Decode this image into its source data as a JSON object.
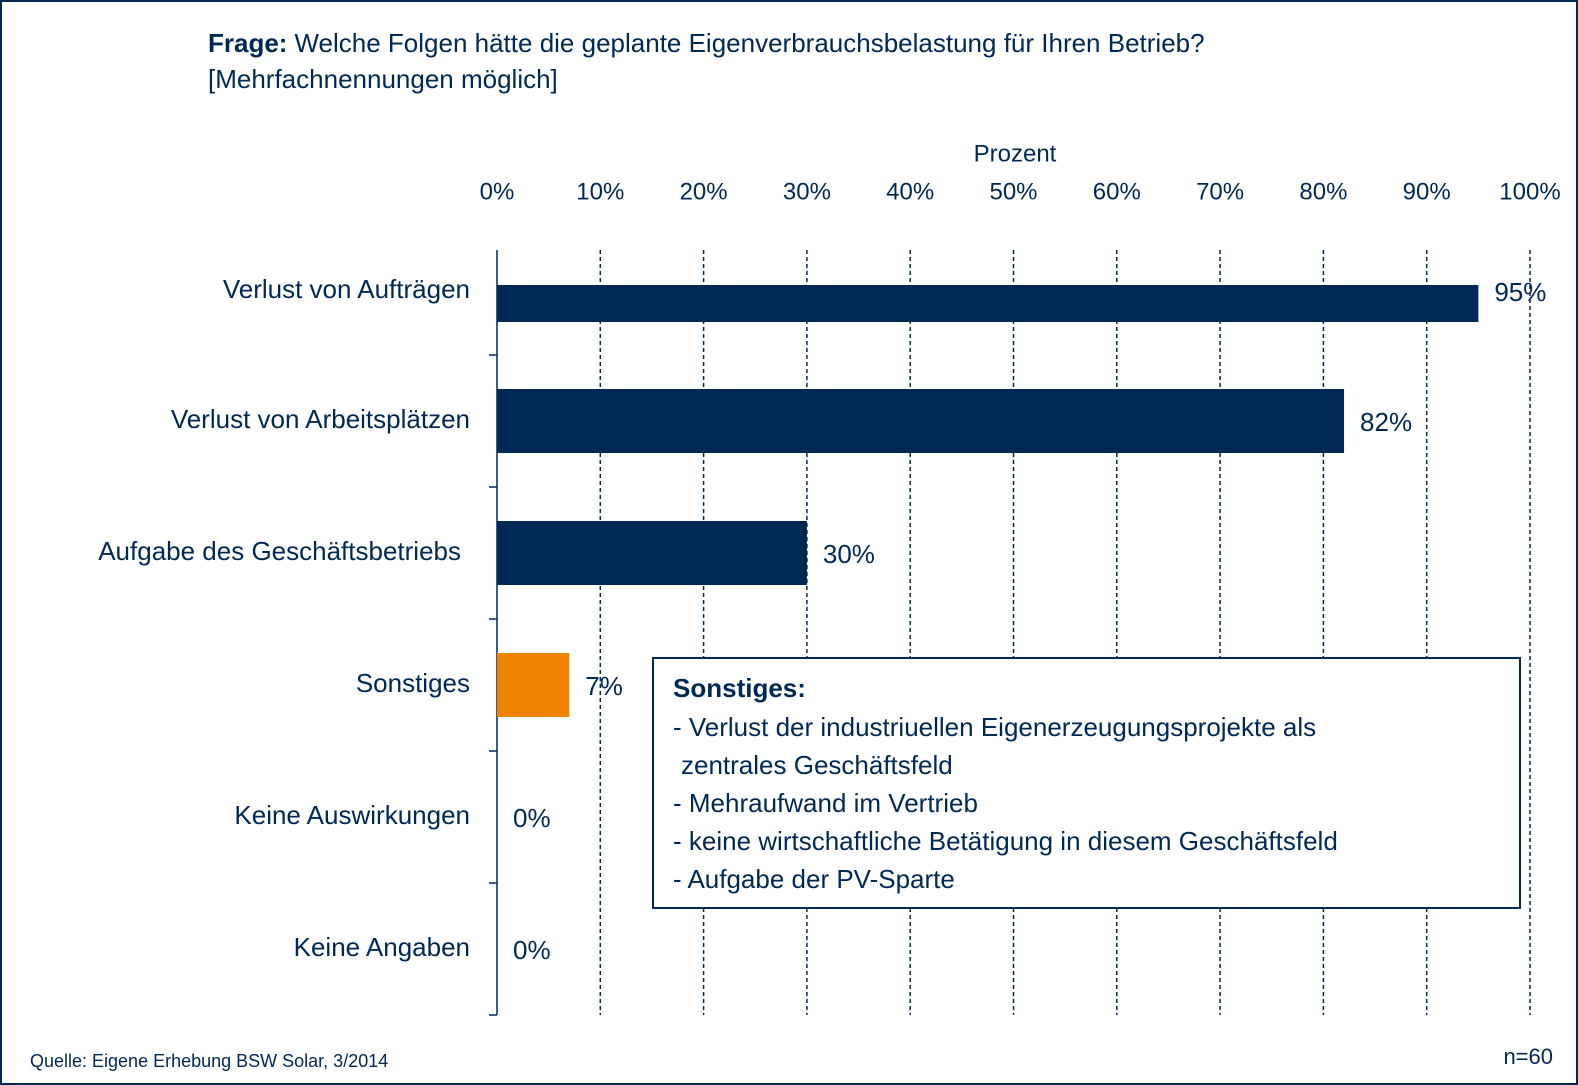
{
  "chart_data": {
    "type": "hbar",
    "title_prefix": "Frage:",
    "title": "Welche Folgen hätte die geplante Eigenverbrauchsbelastung für Ihren Betrieb?",
    "subtitle": "[Mehrfachnennungen möglich]",
    "x_label": "Prozent",
    "categories": [
      "Verlust von Aufträgen",
      "Verlust von Arbeitsplätzen",
      "Aufgabe des Geschäftsbetriebs",
      "Sonstiges",
      "Keine Auswirkungen",
      "Keine Angaben"
    ],
    "values": [
      95,
      82,
      30,
      7,
      0,
      0
    ],
    "value_labels": [
      "95%",
      "82%",
      "30%",
      "7%",
      "0%",
      "0%"
    ],
    "colors": [
      "#002855",
      "#002855",
      "#002855",
      "#f08300",
      "#002855",
      "#002855"
    ],
    "xlim": [
      0,
      100
    ],
    "xticks": [
      {
        "value": 0,
        "label": "0%"
      },
      {
        "value": 10,
        "label": "10%"
      },
      {
        "value": 20,
        "label": "20%"
      },
      {
        "value": 30,
        "label": "30%"
      },
      {
        "value": 40,
        "label": "40%"
      },
      {
        "value": 50,
        "label": "50%"
      },
      {
        "value": 60,
        "label": "60%"
      },
      {
        "value": 70,
        "label": "70%"
      },
      {
        "value": 80,
        "label": "80%"
      },
      {
        "value": 90,
        "label": "90%"
      },
      {
        "value": 100,
        "label": "100%"
      }
    ],
    "grid": true,
    "annotation": {
      "title": "Sonstiges:",
      "lines": [
        "- Verlust der industriuellen Eigenerzeugungsprojekte als",
        "zentrales Geschäftsfeld",
        "- Mehraufwand im Vertrieb",
        "- keine wirtschaftliche Betätigung in diesem Geschäftsfeld",
        "- Aufgabe der PV-Sparte"
      ]
    },
    "source": "Quelle: Eigene Erhebung BSW Solar, 3/2014",
    "sample": "n=60"
  }
}
